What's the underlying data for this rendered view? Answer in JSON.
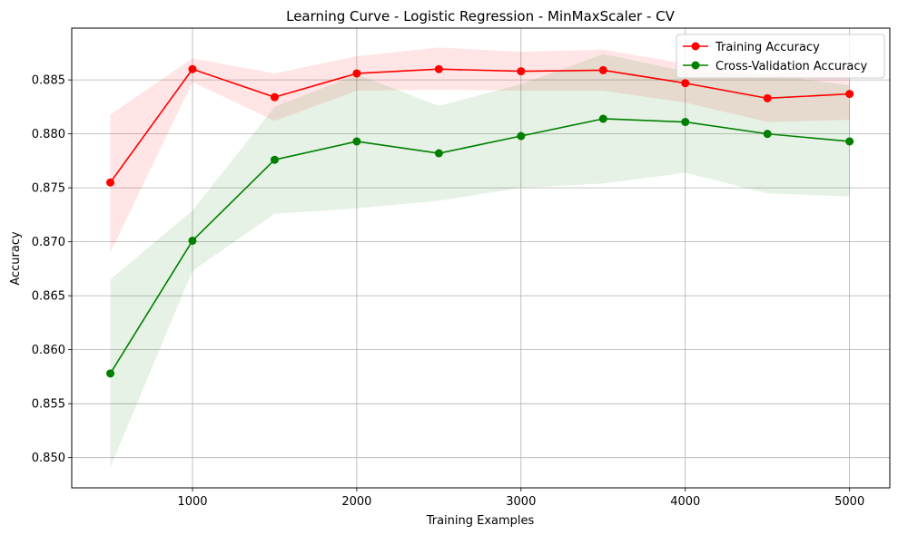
{
  "chart_data": {
    "type": "line",
    "title": "Learning Curve - Logistic Regression - MinMaxScaler - CV",
    "xlabel": "Training Examples",
    "ylabel": "Accuracy",
    "xlim": [
      265,
      5245
    ],
    "ylim": [
      0.8472,
      0.8898
    ],
    "xticks": [
      1000,
      2000,
      3000,
      4000,
      5000
    ],
    "xtick_labels": [
      "1000",
      "2000",
      "3000",
      "4000",
      "5000"
    ],
    "yticks": [
      0.85,
      0.855,
      0.86,
      0.865,
      0.87,
      0.875,
      0.88,
      0.885
    ],
    "ytick_labels": [
      "0.850",
      "0.855",
      "0.860",
      "0.865",
      "0.870",
      "0.875",
      "0.880",
      "0.885"
    ],
    "grid": true,
    "legend_position": "upper right",
    "x": [
      500,
      1000,
      1500,
      2000,
      2500,
      3000,
      3500,
      4000,
      4500,
      5000
    ],
    "series": [
      {
        "name": "Training Accuracy",
        "color": "#ff0000",
        "band_color": "#ff0000",
        "values": [
          0.8755,
          0.886,
          0.8834,
          0.8856,
          0.886,
          0.8858,
          0.8859,
          0.8847,
          0.8833,
          0.8837
        ],
        "band_upper": [
          0.8818,
          0.887,
          0.8856,
          0.8872,
          0.888,
          0.8876,
          0.8878,
          0.8865,
          0.8855,
          0.8862
        ],
        "band_lower": [
          0.869,
          0.8848,
          0.8812,
          0.884,
          0.8841,
          0.884,
          0.884,
          0.8829,
          0.8811,
          0.8813
        ]
      },
      {
        "name": "Cross-Validation Accuracy",
        "color": "#008000",
        "band_color": "#008000",
        "values": [
          0.8578,
          0.8701,
          0.8776,
          0.8793,
          0.8782,
          0.8798,
          0.8814,
          0.8811,
          0.88,
          0.8793
        ],
        "band_upper": [
          0.8665,
          0.8729,
          0.8825,
          0.8855,
          0.8826,
          0.8846,
          0.8874,
          0.8858,
          0.8855,
          0.8845
        ],
        "band_lower": [
          0.8491,
          0.8673,
          0.8726,
          0.8731,
          0.8738,
          0.875,
          0.8754,
          0.8764,
          0.8745,
          0.8742
        ]
      }
    ]
  }
}
